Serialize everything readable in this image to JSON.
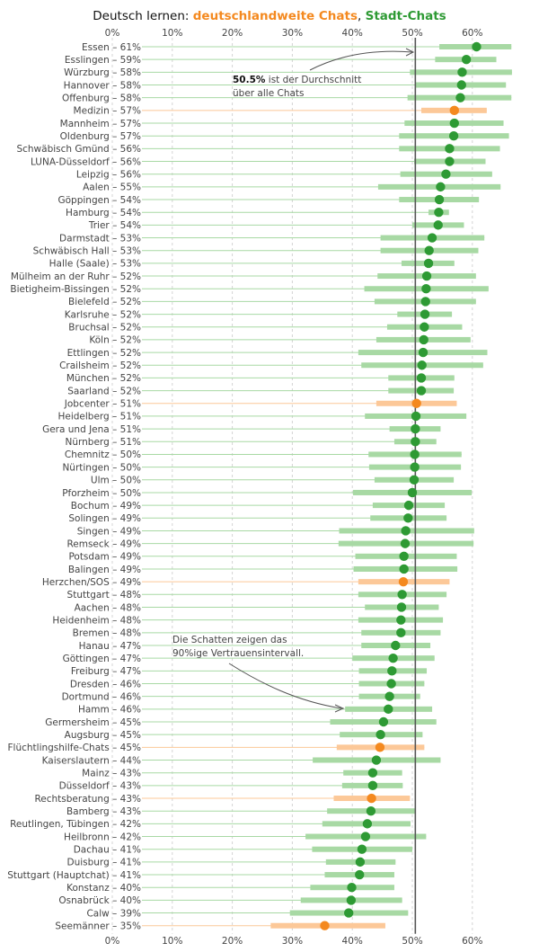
{
  "chart_data": {
    "type": "dot-interval",
    "title": {
      "prefix": "Deutsch lernen: ",
      "series_a": "deutschlandweite Chats",
      "separator": ", ",
      "series_b": "Stadt-Chats"
    },
    "x_ticks": [
      "0%",
      "10%",
      "20%",
      "30%",
      "40%",
      "50%",
      "60%"
    ],
    "xlim": [
      0,
      0.69
    ],
    "reference_value": 0.505,
    "grid": "vertical dashed",
    "colors": {
      "city": "#2e9a34",
      "city_interval": "#a8d9a4",
      "national": "#f4891f",
      "national_interval": "#fcc898",
      "reference": "#555555"
    },
    "annotations": [
      {
        "bold": "50.5%",
        "text": " ist der Durchschnitt",
        "line2": "über alle Chats"
      },
      {
        "text": "Die Schatten zeigen das",
        "line2": "90%ige Vertrauensintervall."
      }
    ],
    "rows": [
      {
        "name": "Essen",
        "label": "61%",
        "value": 0.607,
        "lo": 0.545,
        "hi": 0.665,
        "group": "city"
      },
      {
        "name": "Esslingen",
        "label": "59%",
        "value": 0.59,
        "lo": 0.538,
        "hi": 0.64,
        "group": "city"
      },
      {
        "name": "Würzburg",
        "label": "58%",
        "value": 0.583,
        "lo": 0.496,
        "hi": 0.666,
        "group": "city"
      },
      {
        "name": "Hannover",
        "label": "58%",
        "value": 0.582,
        "lo": 0.506,
        "hi": 0.656,
        "group": "city"
      },
      {
        "name": "Offenburg",
        "label": "58%",
        "value": 0.58,
        "lo": 0.492,
        "hi": 0.665,
        "group": "city"
      },
      {
        "name": "Medizin",
        "label": "57%",
        "value": 0.57,
        "lo": 0.515,
        "hi": 0.624,
        "group": "national"
      },
      {
        "name": "Mannheim",
        "label": "57%",
        "value": 0.57,
        "lo": 0.487,
        "hi": 0.652,
        "group": "city"
      },
      {
        "name": "Oldenburg",
        "label": "57%",
        "value": 0.569,
        "lo": 0.478,
        "hi": 0.661,
        "group": "city"
      },
      {
        "name": "Schwäbisch Gmünd",
        "label": "56%",
        "value": 0.562,
        "lo": 0.478,
        "hi": 0.646,
        "group": "city"
      },
      {
        "name": "LUNA-Düsseldorf",
        "label": "56%",
        "value": 0.562,
        "lo": 0.503,
        "hi": 0.622,
        "group": "city"
      },
      {
        "name": "Leipzig",
        "label": "56%",
        "value": 0.556,
        "lo": 0.48,
        "hi": 0.633,
        "group": "city"
      },
      {
        "name": "Aalen",
        "label": "55%",
        "value": 0.547,
        "lo": 0.443,
        "hi": 0.647,
        "group": "city"
      },
      {
        "name": "Göppingen",
        "label": "54%",
        "value": 0.545,
        "lo": 0.478,
        "hi": 0.611,
        "group": "city"
      },
      {
        "name": "Hamburg",
        "label": "54%",
        "value": 0.544,
        "lo": 0.527,
        "hi": 0.561,
        "group": "city"
      },
      {
        "name": "Trier",
        "label": "54%",
        "value": 0.543,
        "lo": 0.5,
        "hi": 0.586,
        "group": "city"
      },
      {
        "name": "Darmstadt",
        "label": "53%",
        "value": 0.533,
        "lo": 0.447,
        "hi": 0.62,
        "group": "city"
      },
      {
        "name": "Schwäbisch Hall",
        "label": "53%",
        "value": 0.528,
        "lo": 0.447,
        "hi": 0.61,
        "group": "city"
      },
      {
        "name": "Halle (Saale)",
        "label": "53%",
        "value": 0.527,
        "lo": 0.482,
        "hi": 0.57,
        "group": "city"
      },
      {
        "name": "Mülheim an der Ruhr",
        "label": "52%",
        "value": 0.524,
        "lo": 0.442,
        "hi": 0.606,
        "group": "city"
      },
      {
        "name": "Bietigheim-Bissingen",
        "label": "52%",
        "value": 0.523,
        "lo": 0.42,
        "hi": 0.627,
        "group": "city"
      },
      {
        "name": "Bielefeld",
        "label": "52%",
        "value": 0.522,
        "lo": 0.437,
        "hi": 0.606,
        "group": "city"
      },
      {
        "name": "Karlsruhe",
        "label": "52%",
        "value": 0.521,
        "lo": 0.475,
        "hi": 0.566,
        "group": "city"
      },
      {
        "name": "Bruchsal",
        "label": "52%",
        "value": 0.52,
        "lo": 0.458,
        "hi": 0.583,
        "group": "city"
      },
      {
        "name": "Köln",
        "label": "52%",
        "value": 0.519,
        "lo": 0.44,
        "hi": 0.597,
        "group": "city"
      },
      {
        "name": "Ettlingen",
        "label": "52%",
        "value": 0.518,
        "lo": 0.41,
        "hi": 0.625,
        "group": "city"
      },
      {
        "name": "Crailsheim",
        "label": "52%",
        "value": 0.516,
        "lo": 0.415,
        "hi": 0.618,
        "group": "city"
      },
      {
        "name": "München",
        "label": "52%",
        "value": 0.515,
        "lo": 0.46,
        "hi": 0.57,
        "group": "city"
      },
      {
        "name": "Saarland",
        "label": "52%",
        "value": 0.515,
        "lo": 0.46,
        "hi": 0.569,
        "group": "city"
      },
      {
        "name": "Jobcenter",
        "label": "51%",
        "value": 0.507,
        "lo": 0.44,
        "hi": 0.574,
        "group": "national"
      },
      {
        "name": "Heidelberg",
        "label": "51%",
        "value": 0.506,
        "lo": 0.421,
        "hi": 0.59,
        "group": "city"
      },
      {
        "name": "Gera und Jena",
        "label": "51%",
        "value": 0.505,
        "lo": 0.462,
        "hi": 0.547,
        "group": "city"
      },
      {
        "name": "Nürnberg",
        "label": "51%",
        "value": 0.505,
        "lo": 0.47,
        "hi": 0.54,
        "group": "city"
      },
      {
        "name": "Chemnitz",
        "label": "50%",
        "value": 0.504,
        "lo": 0.427,
        "hi": 0.582,
        "group": "city"
      },
      {
        "name": "Nürtingen",
        "label": "50%",
        "value": 0.504,
        "lo": 0.428,
        "hi": 0.581,
        "group": "city"
      },
      {
        "name": "Ulm",
        "label": "50%",
        "value": 0.503,
        "lo": 0.437,
        "hi": 0.569,
        "group": "city"
      },
      {
        "name": "Pforzheim",
        "label": "50%",
        "value": 0.5,
        "lo": 0.401,
        "hi": 0.599,
        "group": "city"
      },
      {
        "name": "Bochum",
        "label": "49%",
        "value": 0.494,
        "lo": 0.434,
        "hi": 0.554,
        "group": "city"
      },
      {
        "name": "Solingen",
        "label": "49%",
        "value": 0.493,
        "lo": 0.43,
        "hi": 0.557,
        "group": "city"
      },
      {
        "name": "Singen",
        "label": "49%",
        "value": 0.489,
        "lo": 0.378,
        "hi": 0.603,
        "group": "city"
      },
      {
        "name": "Remseck",
        "label": "49%",
        "value": 0.488,
        "lo": 0.377,
        "hi": 0.602,
        "group": "city"
      },
      {
        "name": "Potsdam",
        "label": "49%",
        "value": 0.486,
        "lo": 0.405,
        "hi": 0.574,
        "group": "city"
      },
      {
        "name": "Balingen",
        "label": "49%",
        "value": 0.486,
        "lo": 0.402,
        "hi": 0.575,
        "group": "city"
      },
      {
        "name": "Herzchen/SOS",
        "label": "49%",
        "value": 0.485,
        "lo": 0.41,
        "hi": 0.562,
        "group": "national"
      },
      {
        "name": "Stuttgart",
        "label": "48%",
        "value": 0.483,
        "lo": 0.41,
        "hi": 0.557,
        "group": "city"
      },
      {
        "name": "Aachen",
        "label": "48%",
        "value": 0.482,
        "lo": 0.421,
        "hi": 0.544,
        "group": "city"
      },
      {
        "name": "Heidenheim",
        "label": "48%",
        "value": 0.481,
        "lo": 0.41,
        "hi": 0.551,
        "group": "city"
      },
      {
        "name": "Bremen",
        "label": "48%",
        "value": 0.481,
        "lo": 0.415,
        "hi": 0.547,
        "group": "city"
      },
      {
        "name": "Hanau",
        "label": "47%",
        "value": 0.472,
        "lo": 0.415,
        "hi": 0.53,
        "group": "city"
      },
      {
        "name": "Göttingen",
        "label": "47%",
        "value": 0.468,
        "lo": 0.4,
        "hi": 0.537,
        "group": "city"
      },
      {
        "name": "Freiburg",
        "label": "47%",
        "value": 0.466,
        "lo": 0.411,
        "hi": 0.524,
        "group": "city"
      },
      {
        "name": "Dresden",
        "label": "46%",
        "value": 0.465,
        "lo": 0.411,
        "hi": 0.52,
        "group": "city"
      },
      {
        "name": "Dortmund",
        "label": "46%",
        "value": 0.462,
        "lo": 0.411,
        "hi": 0.513,
        "group": "city"
      },
      {
        "name": "Hamm",
        "label": "46%",
        "value": 0.46,
        "lo": 0.388,
        "hi": 0.533,
        "group": "city"
      },
      {
        "name": "Germersheim",
        "label": "45%",
        "value": 0.452,
        "lo": 0.363,
        "hi": 0.54,
        "group": "city"
      },
      {
        "name": "Augsburg",
        "label": "45%",
        "value": 0.447,
        "lo": 0.379,
        "hi": 0.517,
        "group": "city"
      },
      {
        "name": "Flüchtlingshilfe-Chats",
        "label": "45%",
        "value": 0.446,
        "lo": 0.374,
        "hi": 0.52,
        "group": "national"
      },
      {
        "name": "Kaiserslautern",
        "label": "44%",
        "value": 0.44,
        "lo": 0.334,
        "hi": 0.547,
        "group": "city"
      },
      {
        "name": "Mainz",
        "label": "43%",
        "value": 0.434,
        "lo": 0.385,
        "hi": 0.483,
        "group": "city"
      },
      {
        "name": "Düsseldorf",
        "label": "43%",
        "value": 0.434,
        "lo": 0.383,
        "hi": 0.484,
        "group": "city"
      },
      {
        "name": "Rechtsberatung",
        "label": "43%",
        "value": 0.432,
        "lo": 0.369,
        "hi": 0.496,
        "group": "national"
      },
      {
        "name": "Bamberg",
        "label": "43%",
        "value": 0.431,
        "lo": 0.358,
        "hi": 0.504,
        "group": "city"
      },
      {
        "name": "Reutlingen, Tübingen",
        "label": "42%",
        "value": 0.425,
        "lo": 0.35,
        "hi": 0.497,
        "group": "city"
      },
      {
        "name": "Heilbronn",
        "label": "42%",
        "value": 0.422,
        "lo": 0.322,
        "hi": 0.523,
        "group": "city"
      },
      {
        "name": "Dachau",
        "label": "41%",
        "value": 0.416,
        "lo": 0.333,
        "hi": 0.5,
        "group": "city"
      },
      {
        "name": "Duisburg",
        "label": "41%",
        "value": 0.413,
        "lo": 0.356,
        "hi": 0.472,
        "group": "city"
      },
      {
        "name": "Stuttgart (Hauptchat)",
        "label": "41%",
        "value": 0.412,
        "lo": 0.354,
        "hi": 0.47,
        "group": "city"
      },
      {
        "name": "Konstanz",
        "label": "40%",
        "value": 0.399,
        "lo": 0.33,
        "hi": 0.47,
        "group": "city"
      },
      {
        "name": "Osnabrück",
        "label": "40%",
        "value": 0.398,
        "lo": 0.314,
        "hi": 0.483,
        "group": "city"
      },
      {
        "name": "Calw",
        "label": "39%",
        "value": 0.394,
        "lo": 0.296,
        "hi": 0.493,
        "group": "city"
      },
      {
        "name": "Seemänner",
        "label": "35%",
        "value": 0.354,
        "lo": 0.264,
        "hi": 0.455,
        "group": "national"
      }
    ]
  }
}
